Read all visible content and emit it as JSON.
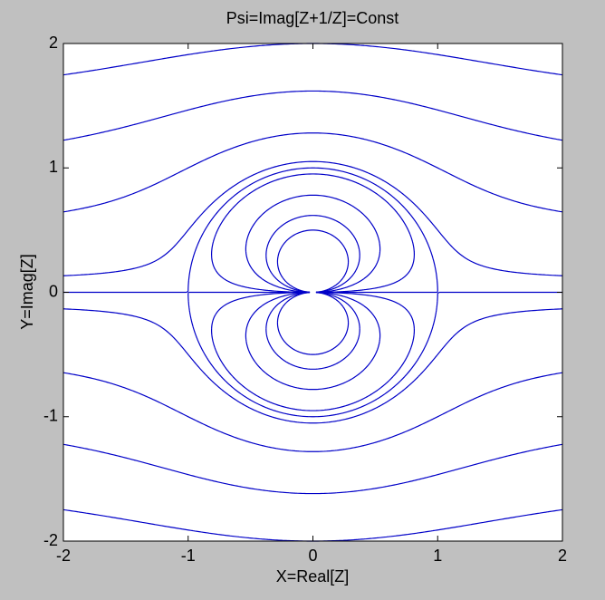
{
  "chart_data": {
    "type": "contour",
    "title": "Psi=Imag[Z+1/Z]=Const",
    "xlabel": "X=Real[Z]",
    "ylabel": "Y=Imag[Z]",
    "xlim": [
      -2,
      2
    ],
    "ylim": [
      -2,
      2
    ],
    "xticks": [
      -2,
      -1,
      0,
      1,
      2
    ],
    "yticks": [
      -2,
      -1,
      0,
      1,
      2
    ],
    "levels": [
      -1.5,
      -1,
      -0.5,
      -0.1,
      0,
      0.1,
      0.5,
      1,
      1.5
    ],
    "color": "#0000c8"
  }
}
